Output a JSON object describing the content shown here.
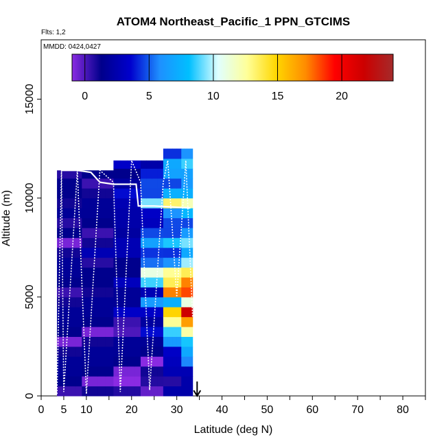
{
  "chart_data": {
    "type": "heatmap",
    "title": "ATOM4 Northeast_Pacific_1 PPN_GTCIMS",
    "flights_label": "Flts: 1,2",
    "mmdd_label": "MMDD: 0424,0427",
    "xlabel": "Latitude (deg N)",
    "ylabel": "Altitude (m)",
    "xlim": [
      0,
      85
    ],
    "ylim": [
      0,
      18000
    ],
    "x_ticks": [
      "0",
      "5",
      "10",
      "20",
      "30",
      "40",
      "50",
      "60",
      "70",
      "80"
    ],
    "y_ticks": [
      "0",
      "5000",
      "10000",
      "15000"
    ],
    "colorbar": {
      "range": [
        -1,
        24
      ],
      "tick_labels": [
        "0",
        "5",
        "10",
        "15",
        "20"
      ],
      "colors": [
        "#8A2BE2",
        "#00008B",
        "#0000CD",
        "#1E90FF",
        "#00BFFF",
        "#E0FFFF",
        "#FFFF99",
        "#FFD700",
        "#FF8C00",
        "#FF0000",
        "#CC0000",
        "#A52A2A"
      ]
    },
    "marker_latitude": 34.5,
    "columns": [
      {
        "x0": 3.5,
        "x1": 9,
        "top": 11400,
        "values": [
          1,
          1,
          2,
          1,
          1,
          0,
          1,
          2,
          1,
          1,
          1,
          1,
          2,
          1,
          1,
          0,
          1,
          1,
          1,
          1,
          2,
          1,
          1
        ]
      },
      {
        "x0": 9,
        "x1": 16,
        "top": 11400,
        "values": [
          1,
          0,
          1,
          2,
          1,
          1,
          0,
          1,
          2,
          1,
          1,
          2,
          1,
          1,
          2,
          1,
          1,
          1,
          2,
          1,
          1,
          1,
          1
        ]
      },
      {
        "x0": 16,
        "x1": 22,
        "top": 11900,
        "values": [
          0,
          -1,
          0,
          1,
          2,
          1,
          0,
          1,
          3,
          2,
          1,
          3,
          2,
          1,
          3,
          2,
          2,
          3,
          2,
          3,
          3,
          2,
          2,
          3
        ]
      },
      {
        "x0": 22,
        "x1": 27,
        "top": 11900,
        "values": [
          0,
          0,
          1,
          -1,
          1,
          2,
          3,
          2,
          4,
          6,
          3,
          8,
          11,
          6,
          4,
          7,
          4,
          3,
          4,
          9,
          5,
          4,
          4,
          3
        ]
      },
      {
        "x0": 27,
        "x1": 31,
        "top": 12500,
        "values": [
          2,
          1,
          2,
          3,
          4,
          6,
          9,
          12,
          15,
          8,
          17,
          14,
          12,
          6,
          5,
          8,
          5,
          4,
          6,
          14,
          7,
          5,
          6,
          7,
          5
        ]
      },
      {
        "x0": 31,
        "x1": 33.5,
        "top": 12500,
        "values": [
          3,
          2,
          3,
          5,
          7,
          9,
          12,
          17,
          21,
          11,
          19,
          17,
          14,
          9,
          7,
          10,
          6,
          5,
          7,
          12,
          8,
          6,
          7,
          8,
          6
        ]
      }
    ],
    "flight_track": [
      [
        3.5,
        100
      ],
      [
        4.5,
        11400
      ],
      [
        5,
        200
      ],
      [
        8,
        11400
      ],
      [
        10,
        100
      ],
      [
        13,
        11400
      ],
      [
        16,
        10800
      ],
      [
        17.5,
        200
      ],
      [
        20,
        11900
      ],
      [
        22,
        10800
      ],
      [
        24,
        300
      ],
      [
        27,
        10800
      ],
      [
        28,
        11900
      ],
      [
        30,
        5000
      ],
      [
        32,
        11900
      ],
      [
        33.5,
        4000
      ]
    ],
    "upper_track": [
      [
        4.5,
        11400
      ],
      [
        8,
        11400
      ],
      [
        11,
        11300
      ],
      [
        13,
        10800
      ],
      [
        16,
        10700
      ],
      [
        21,
        10700
      ],
      [
        21.5,
        9600
      ],
      [
        25,
        9600
      ],
      [
        33,
        9500
      ]
    ]
  }
}
